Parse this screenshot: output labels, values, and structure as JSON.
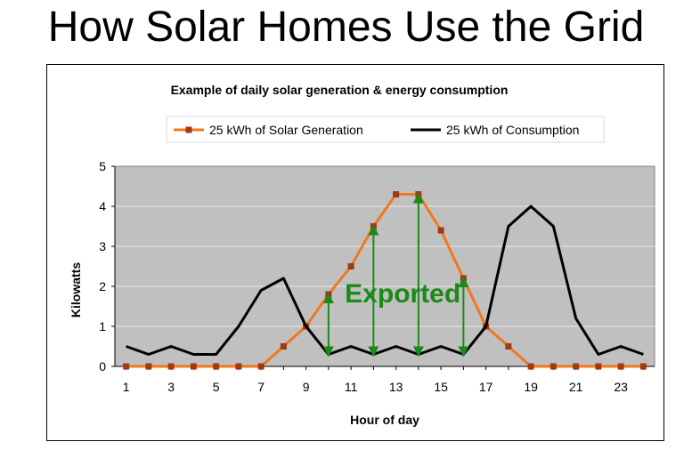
{
  "slide_title": "How Solar Homes Use the Grid",
  "chart_data": {
    "type": "line",
    "title": "Example of daily solar generation & energy consumption",
    "xlabel": "Hour of day",
    "ylabel": "Kilowatts",
    "x": [
      1,
      2,
      3,
      4,
      5,
      6,
      7,
      8,
      9,
      10,
      11,
      12,
      13,
      14,
      15,
      16,
      17,
      18,
      19,
      20,
      21,
      22,
      23,
      24
    ],
    "xticks": [
      "1",
      "3",
      "5",
      "7",
      "9",
      "11",
      "13",
      "15",
      "17",
      "19",
      "21",
      "23"
    ],
    "yticks": [
      "0",
      "1",
      "2",
      "3",
      "4",
      "5"
    ],
    "ylim": [
      0,
      5
    ],
    "grid": "horizontal",
    "legend_position": "top",
    "series": [
      {
        "name": "25 kWh of Solar Generation",
        "color": "#f07820",
        "marker_color": "#a03a10",
        "marker": "square",
        "values": [
          0,
          0,
          0,
          0,
          0,
          0,
          0,
          0.5,
          1,
          1.8,
          2.5,
          3.5,
          4.3,
          4.3,
          3.4,
          2.2,
          1,
          0.5,
          0,
          0,
          0,
          0,
          0,
          0
        ]
      },
      {
        "name": "25 kWh of Consumption",
        "color": "#000000",
        "marker": "none",
        "values": [
          0.5,
          0.3,
          0.5,
          0.3,
          0.3,
          1,
          1.9,
          2.2,
          1,
          0.3,
          0.5,
          0.3,
          0.5,
          0.3,
          0.5,
          0.3,
          1,
          3.5,
          4,
          3.5,
          1.2,
          0.3,
          0.5,
          0.3
        ]
      }
    ],
    "annotation": {
      "text": "Exported",
      "color": "#1a8a1a",
      "arrow_hours": [
        10,
        12,
        14,
        16
      ]
    },
    "plot_background": "#c0c0c0"
  }
}
